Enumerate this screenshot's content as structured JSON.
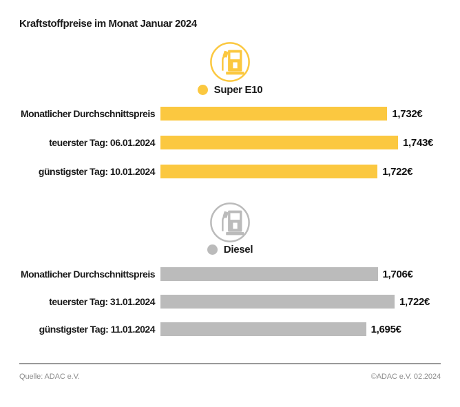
{
  "title": "Kraftstoffpreise im Monat Januar 2024",
  "chart_data": [
    {
      "type": "bar",
      "legend": "Super E10",
      "icon": "fuel-pump-icon",
      "color": "#FBC840",
      "categories": [
        "Monatlicher Durchschnittspreis",
        "teuerster Tag: 06.01.2024",
        "günstigster Tag: 10.01.2024"
      ],
      "values": [
        1.732,
        1.743,
        1.722
      ],
      "value_labels": [
        "1,732€",
        "1,743€",
        "1,722€"
      ],
      "xlim": [
        1.5,
        1.743
      ],
      "orientation": "horizontal",
      "grid": false
    },
    {
      "type": "bar",
      "legend": "Diesel",
      "icon": "fuel-pump-icon",
      "color": "#BBBBBB",
      "categories": [
        "Monatlicher Durchschnittspreis",
        "teuerster Tag: 31.01.2024",
        "günstigster Tag: 11.01.2024"
      ],
      "values": [
        1.706,
        1.722,
        1.695
      ],
      "value_labels": [
        "1,706€",
        "1,722€",
        "1,695€"
      ],
      "xlim": [
        1.5,
        1.722
      ],
      "orientation": "horizontal",
      "grid": false
    }
  ],
  "footer": {
    "source": "Quelle: ADAC e.V.",
    "copyright": "©ADAC e.V. 02.2024"
  }
}
